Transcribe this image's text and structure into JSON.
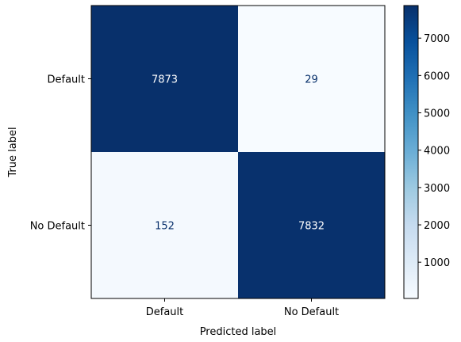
{
  "chart_data": {
    "type": "heatmap",
    "title": "",
    "xlabel": "Predicted label",
    "ylabel": "True label",
    "x_categories": [
      "Default",
      "No Default"
    ],
    "y_categories": [
      "Default",
      "No Default"
    ],
    "matrix": [
      [
        7873,
        29
      ],
      [
        152,
        7832
      ]
    ],
    "colormap": "Blues",
    "colorbar": {
      "range": [
        29,
        7873
      ],
      "ticks": [
        1000,
        2000,
        3000,
        4000,
        5000,
        6000,
        7000
      ]
    },
    "colors": {
      "low": "#f7fbff",
      "high": "#08306b",
      "text_on_dark": "#ffffff",
      "text_on_light": "#08306b"
    }
  }
}
